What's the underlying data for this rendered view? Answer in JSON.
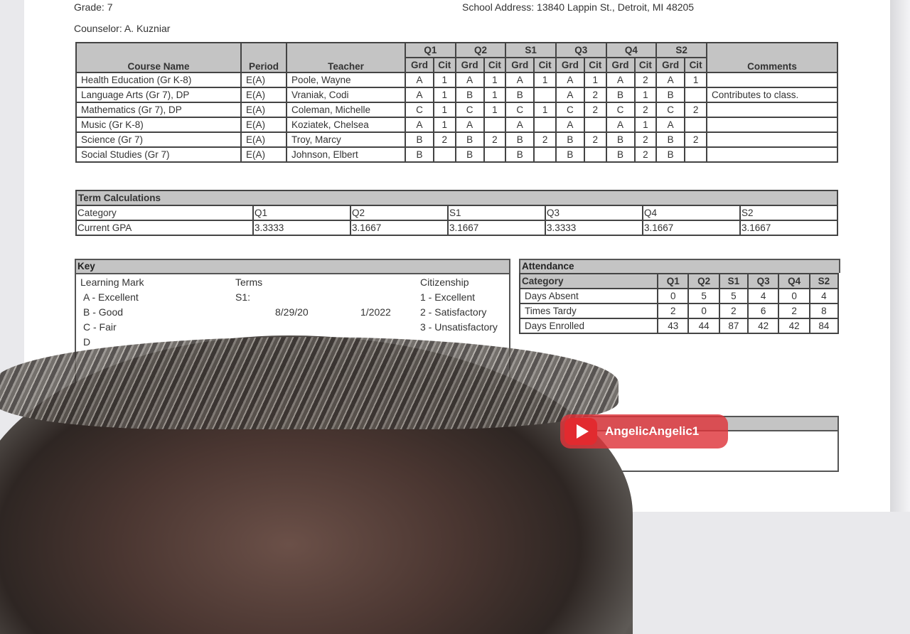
{
  "header": {
    "grade": "Grade: 7",
    "counselor": "Counselor: A. Kuzniar",
    "school_address": "School Address: 13840 Lappin St., Detroit, MI 48205"
  },
  "grades": {
    "headers": {
      "course": "Course Name",
      "period": "Period",
      "teacher": "Teacher",
      "terms": [
        "Q1",
        "Q2",
        "S1",
        "Q3",
        "Q4",
        "S2"
      ],
      "grd": "Grd",
      "cit": "Cit",
      "comments": "Comments"
    },
    "rows": [
      {
        "course": "Health Education (Gr K-8)",
        "period": "E(A)",
        "teacher": "Poole, Wayne",
        "marks": [
          "A",
          "1",
          "A",
          "1",
          "A",
          "1",
          "A",
          "1",
          "A",
          "2",
          "A",
          "1"
        ],
        "comment": ""
      },
      {
        "course": "Language Arts (Gr 7), DP",
        "period": "E(A)",
        "teacher": "Vraniak, Codi",
        "marks": [
          "A",
          "1",
          "B",
          "1",
          "B",
          "",
          "A",
          "2",
          "B",
          "1",
          "B",
          ""
        ],
        "comment": "Contributes to class."
      },
      {
        "course": "Mathematics (Gr 7), DP",
        "period": "E(A)",
        "teacher": "Coleman, Michelle",
        "marks": [
          "C",
          "1",
          "C",
          "1",
          "C",
          "1",
          "C",
          "2",
          "C",
          "2",
          "C",
          "2"
        ],
        "comment": ""
      },
      {
        "course": "Music (Gr K-8)",
        "period": "E(A)",
        "teacher": "Koziatek, Chelsea",
        "marks": [
          "A",
          "1",
          "A",
          "",
          "A",
          "",
          "A",
          "",
          "A",
          "1",
          "A",
          ""
        ],
        "comment": ""
      },
      {
        "course": "Science (Gr 7)",
        "period": "E(A)",
        "teacher": "Troy, Marcy",
        "marks": [
          "B",
          "2",
          "B",
          "2",
          "B",
          "2",
          "B",
          "2",
          "B",
          "2",
          "B",
          "2"
        ],
        "comment": ""
      },
      {
        "course": "Social Studies (Gr 7)",
        "period": "E(A)",
        "teacher": "Johnson, Elbert",
        "marks": [
          "B",
          "",
          "B",
          "",
          "B",
          "",
          "B",
          "",
          "B",
          "2",
          "B",
          ""
        ],
        "comment": ""
      }
    ]
  },
  "term_calc": {
    "title": "Term Calculations",
    "header": [
      "Category",
      "Q1",
      "Q2",
      "S1",
      "Q3",
      "Q4",
      "S2"
    ],
    "row": [
      "Current GPA",
      "3.3333",
      "3.1667",
      "3.1667",
      "3.3333",
      "3.1667",
      "3.1667"
    ]
  },
  "key": {
    "title": "Key",
    "learning_title": "Learning Mark",
    "learning": [
      "A - Excellent",
      "B - Good",
      "C - Fair",
      "D"
    ],
    "terms_title": "Terms",
    "terms_s1": "S1:",
    "terms_dates_a": "8/29/20",
    "terms_dates_b": "1/2022",
    "citizenship_title": "Citizenship",
    "citizenship": [
      "1 - Excellent",
      "2 - Satisfactory",
      "3 - Unsatisfactory"
    ]
  },
  "attendance": {
    "title": "Attendance",
    "header": [
      "Category",
      "Q1",
      "Q2",
      "S1",
      "Q3",
      "Q4",
      "S2"
    ],
    "rows": [
      [
        "Days Absent",
        "0",
        "5",
        "5",
        "4",
        "0",
        "4"
      ],
      [
        "Times Tardy",
        "2",
        "0",
        "2",
        "6",
        "2",
        "8"
      ],
      [
        "Days Enrolled",
        "43",
        "44",
        "87",
        "42",
        "42",
        "84"
      ]
    ]
  },
  "watermark": {
    "channel": "AngelicAngelic1",
    "icon": "youtube-play-icon",
    "color": "#e22a2f"
  }
}
